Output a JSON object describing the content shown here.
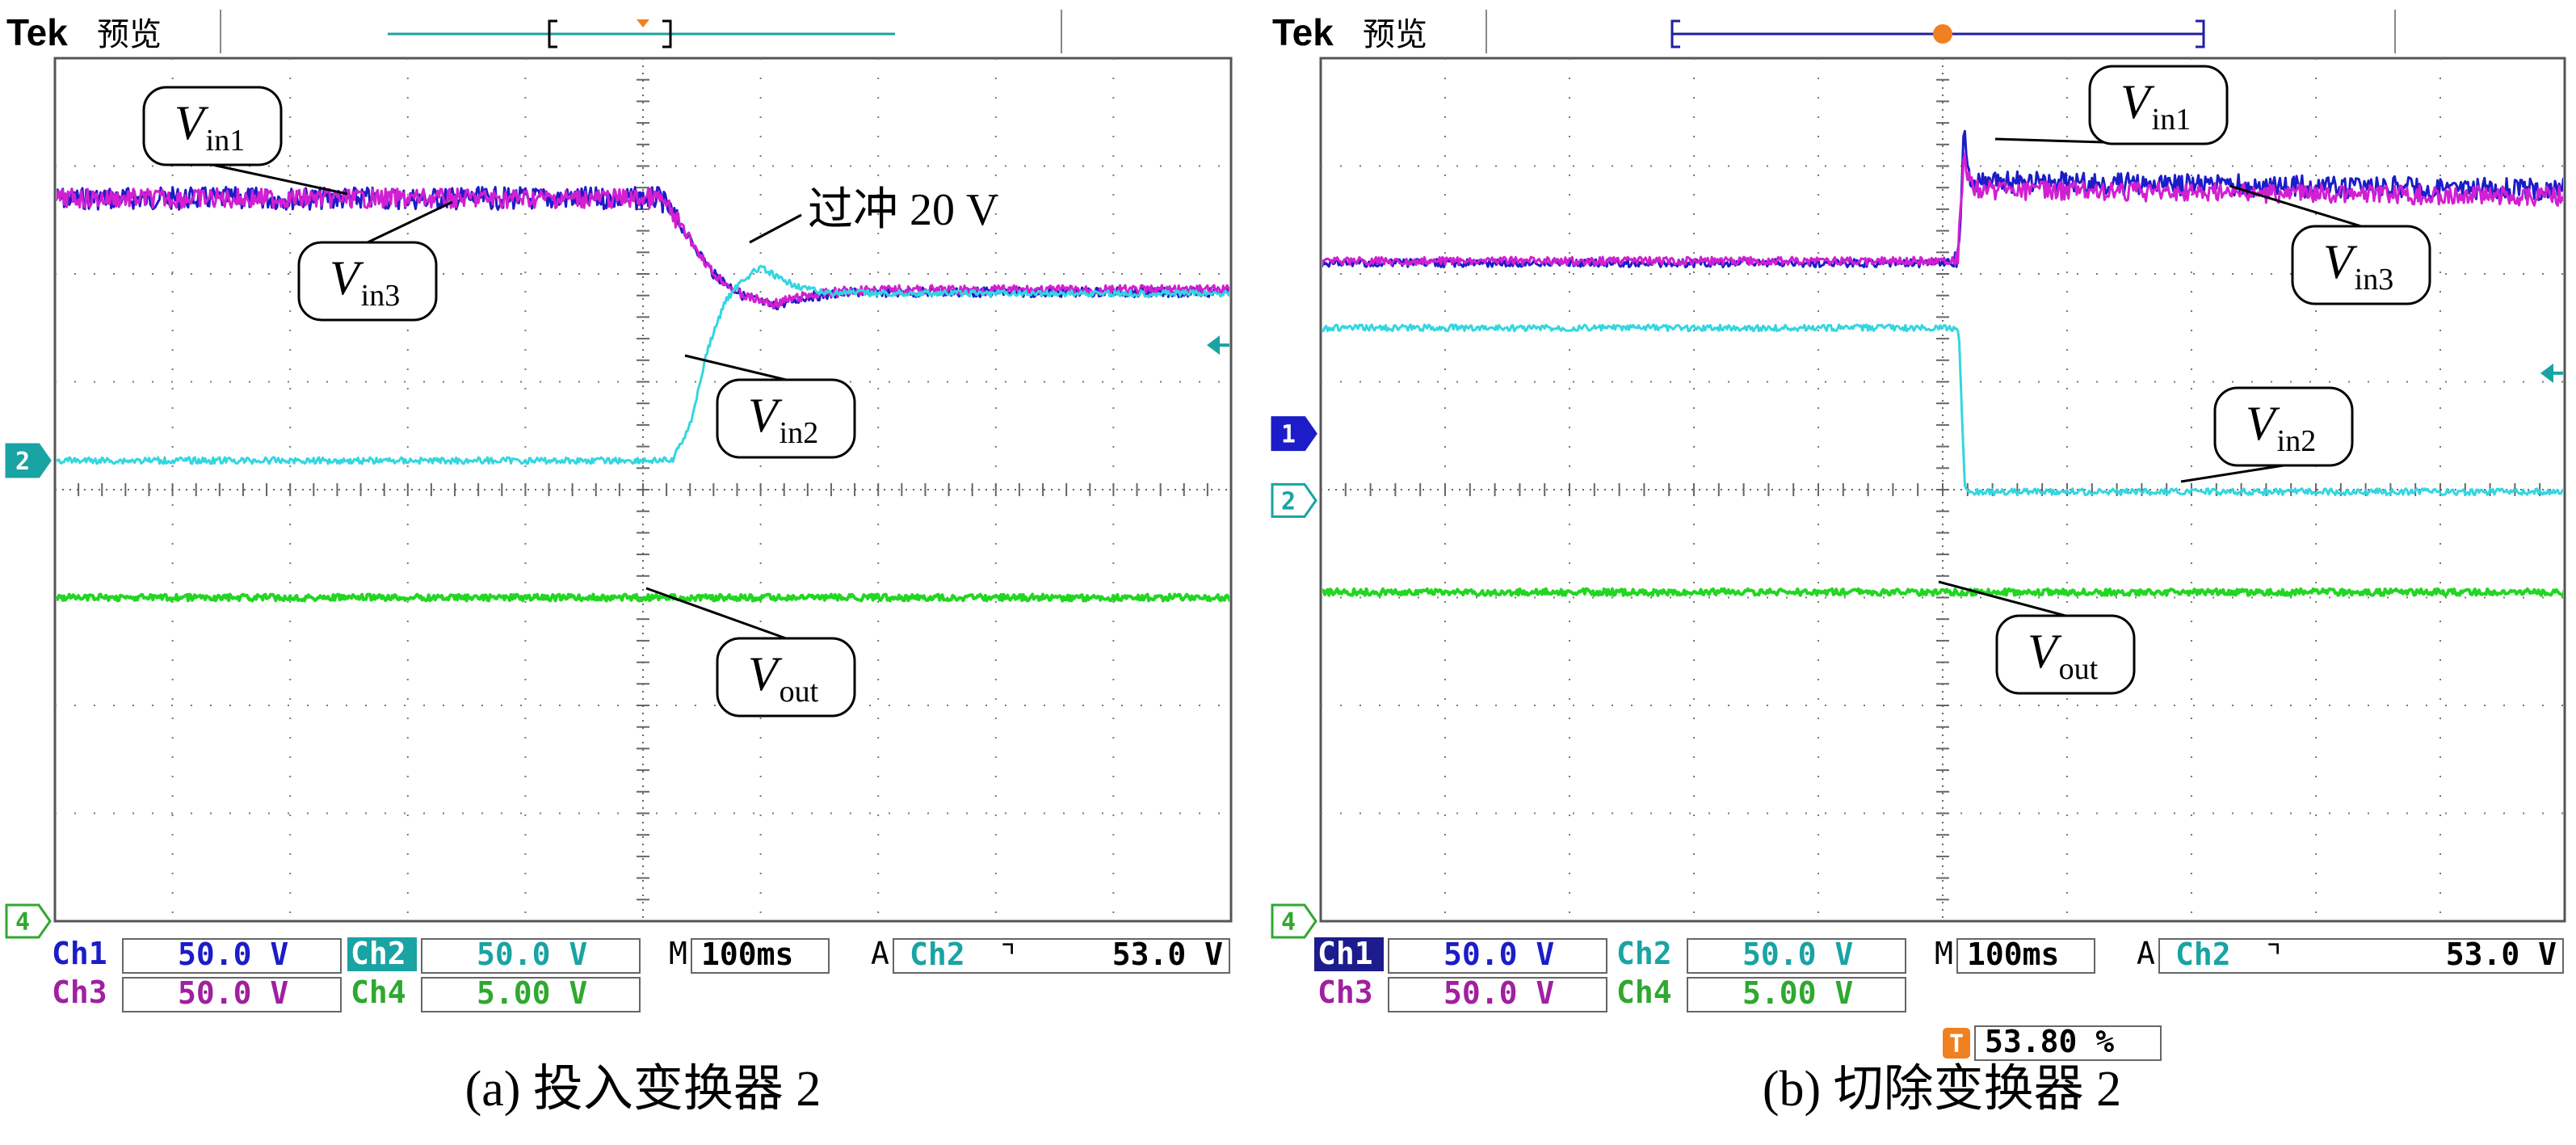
{
  "chart_data": [
    {
      "type": "line",
      "title": "(a) 投入变换器 2",
      "header": {
        "brand": "Tek",
        "mode": "预览"
      },
      "ylim": [
        0,
        8
      ],
      "xlim": [
        0,
        10
      ],
      "grid": true,
      "trigger_marker_x": 5.0,
      "right_marker_y": 5.34,
      "channel_markers": [
        {
          "label": "2",
          "y": 4.27,
          "color": "#1aa3a3",
          "filled": true
        },
        {
          "label": "4",
          "y": 0.0,
          "color": "#2fa82f",
          "filled": false
        }
      ],
      "series": [
        {
          "name": "Vin1",
          "color": "#1c1cc8",
          "x": [
            0,
            5.15,
            5.35,
            5.6,
            5.85,
            6.1,
            6.4,
            6.8,
            10
          ],
          "y": [
            6.7,
            6.7,
            6.4,
            6.0,
            5.8,
            5.7,
            5.79,
            5.83,
            5.83
          ]
        },
        {
          "name": "Vin3",
          "color": "#d21fd2",
          "x": [
            0,
            5.15,
            5.35,
            5.6,
            5.85,
            6.1,
            6.4,
            6.8,
            10
          ],
          "y": [
            6.7,
            6.7,
            6.4,
            6.0,
            5.8,
            5.72,
            5.8,
            5.85,
            5.85
          ]
        },
        {
          "name": "Vin2",
          "color": "#33d6e0",
          "x": [
            0,
            5.25,
            5.4,
            5.55,
            5.7,
            5.85,
            6.0,
            6.2,
            6.5,
            7.0,
            10
          ],
          "y": [
            4.27,
            4.27,
            4.6,
            5.3,
            5.75,
            5.95,
            6.06,
            5.93,
            5.83,
            5.82,
            5.82
          ]
        },
        {
          "name": "Vout",
          "color": "#22d622",
          "x": [
            0,
            10
          ],
          "y": [
            3.0,
            3.0
          ]
        }
      ],
      "labels": [
        {
          "main": "V",
          "sub": "in1",
          "series": "Vin1"
        },
        {
          "main": "V",
          "sub": "in3",
          "series": "Vin3"
        },
        {
          "main": "V",
          "sub": "in2",
          "series": "Vin2"
        },
        {
          "main": "V",
          "sub": "out",
          "series": "Vout"
        }
      ],
      "annotation": "过冲 20 V",
      "readout": {
        "row1": [
          {
            "ch": "Ch1",
            "ch_color": "#1c1cc8",
            "ch_bg": "",
            "value": "50.0 V",
            "value_color": "#1c1cc8"
          },
          {
            "ch": "Ch2",
            "ch_color": "#ffffff",
            "ch_bg": "#1aa3a3",
            "value": "50.0 V",
            "value_color": "#1aa3a3"
          }
        ],
        "row2": [
          {
            "ch": "Ch3",
            "ch_color": "#a020a0",
            "ch_bg": "",
            "value": "50.0 V",
            "value_color": "#a020a0"
          },
          {
            "ch": "Ch4",
            "ch_color": "#2fa82f",
            "ch_bg": "",
            "value": "5.00 V",
            "value_color": "#2fa82f"
          }
        ],
        "timebase": {
          "prefix": "M",
          "value": "100ms"
        },
        "trigger": {
          "prefix": "A",
          "ch": "Ch2",
          "slope": "⌝",
          "level": "53.0 V"
        }
      }
    },
    {
      "type": "line",
      "title": "(b) 切除变换器 2",
      "header": {
        "brand": "Tek",
        "mode": "预览"
      },
      "ylim": [
        0,
        8
      ],
      "xlim": [
        0,
        10
      ],
      "grid": true,
      "trigger_marker_x": 5.0,
      "right_marker_y": 5.08,
      "trigger_T_label": "T",
      "channel_markers": [
        {
          "label": "1",
          "y": 4.52,
          "color": "#1c1cc8",
          "filled": true
        },
        {
          "label": "2",
          "y": 3.9,
          "color": "#1aa3a3",
          "filled": false
        },
        {
          "label": "4",
          "y": 0.0,
          "color": "#2fa82f",
          "filled": false
        }
      ],
      "series": [
        {
          "name": "Vin1",
          "color": "#1c1cc8",
          "x": [
            0,
            5.12,
            5.14,
            5.17,
            5.22,
            5.3,
            10
          ],
          "y": [
            6.1,
            6.1,
            6.5,
            7.3,
            6.9,
            6.85,
            6.78
          ]
        },
        {
          "name": "Vin3",
          "color": "#d21fd2",
          "x": [
            0,
            5.12,
            5.14,
            5.17,
            5.22,
            5.3,
            10
          ],
          "y": [
            6.12,
            6.12,
            6.5,
            7.1,
            6.85,
            6.78,
            6.72
          ]
        },
        {
          "name": "Vin2",
          "color": "#33d6e0",
          "x": [
            0,
            5.13,
            5.15,
            5.18,
            10
          ],
          "y": [
            5.5,
            5.5,
            4.8,
            3.98,
            3.98
          ]
        },
        {
          "name": "Vout",
          "color": "#22d622",
          "x": [
            0,
            10
          ],
          "y": [
            3.05,
            3.05
          ]
        }
      ],
      "labels": [
        {
          "main": "V",
          "sub": "in1",
          "series": "Vin1"
        },
        {
          "main": "V",
          "sub": "in3",
          "series": "Vin3"
        },
        {
          "main": "V",
          "sub": "in2",
          "series": "Vin2"
        },
        {
          "main": "V",
          "sub": "out",
          "series": "Vout"
        }
      ],
      "readout": {
        "row1": [
          {
            "ch": "Ch1",
            "ch_color": "#ffffff",
            "ch_bg": "#1c1c8c",
            "value": "50.0 V",
            "value_color": "#1c1cc8"
          },
          {
            "ch": "Ch2",
            "ch_color": "#1aa3a3",
            "ch_bg": "",
            "value": "50.0 V",
            "value_color": "#1aa3a3"
          }
        ],
        "row2": [
          {
            "ch": "Ch3",
            "ch_color": "#a020a0",
            "ch_bg": "",
            "value": "50.0 V",
            "value_color": "#a020a0"
          },
          {
            "ch": "Ch4",
            "ch_color": "#2fa82f",
            "ch_bg": "",
            "value": "5.00 V",
            "value_color": "#2fa82f"
          }
        ],
        "timebase": {
          "prefix": "M",
          "value": "100ms"
        },
        "trigger": {
          "prefix": "A",
          "ch": "Ch2",
          "slope": "⌝",
          "level": "53.0 V"
        },
        "trigger_position": {
          "prefix": "T",
          "value": "53.80 %"
        }
      }
    }
  ]
}
